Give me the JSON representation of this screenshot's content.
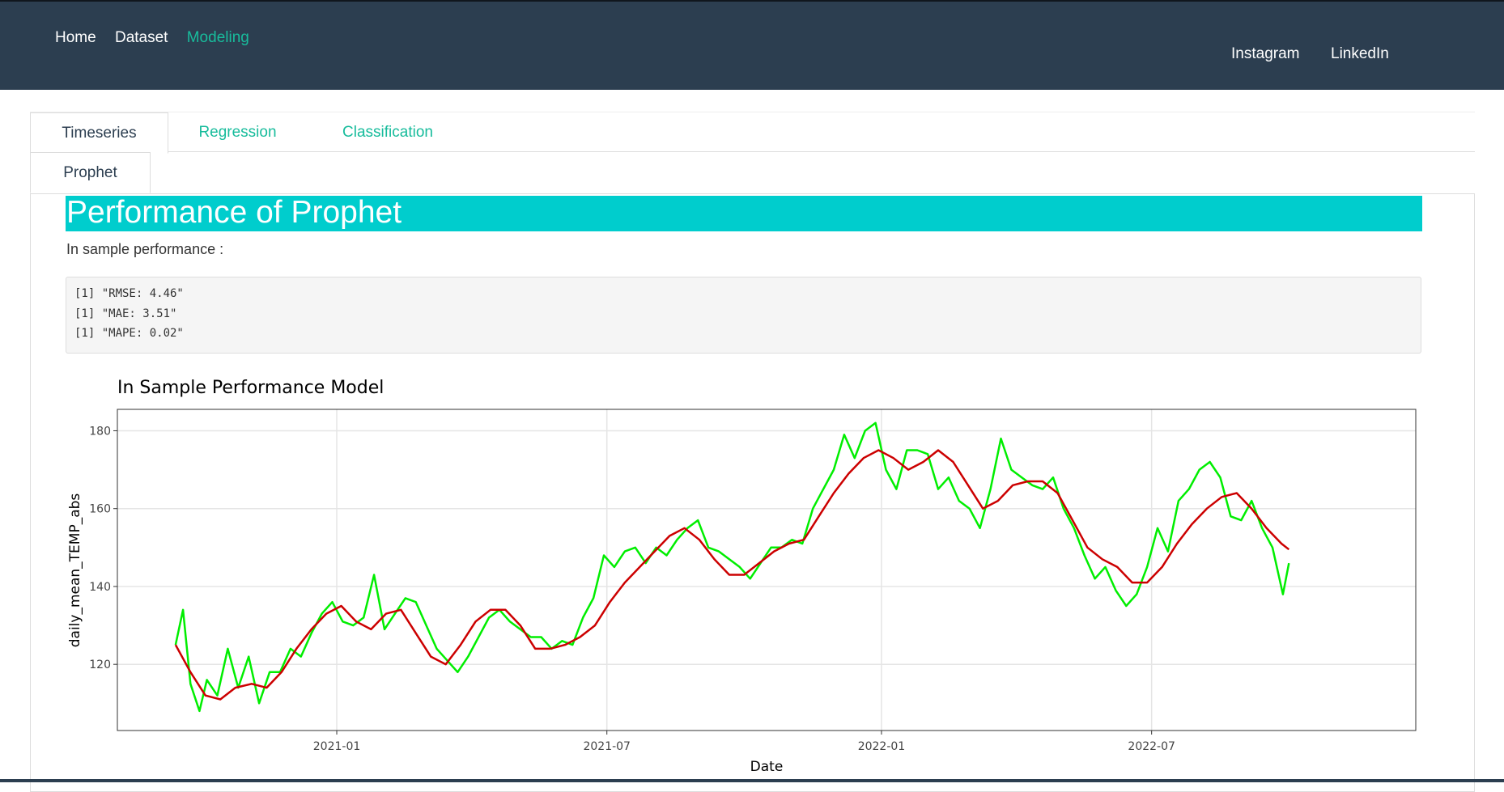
{
  "nav": {
    "left": [
      "Home",
      "Dataset",
      "Modeling"
    ],
    "active": "Modeling",
    "right": [
      "Instagram",
      "LinkedIn"
    ]
  },
  "tabs": {
    "main": [
      "Timeseries",
      "Regression",
      "Classification"
    ],
    "sub": [
      "Prophet"
    ]
  },
  "banner": "Performance of Prophet",
  "insample_label": "In sample performance :",
  "metrics": [
    "[1] \"RMSE: 4.46\"",
    "[1] \"MAE: 3.51\"",
    "[1] \"MAPE: 0.02\""
  ],
  "colors": {
    "navbar": "#2c3e50",
    "accent": "#18bc9c",
    "banner": "#00cdcd",
    "actual": "#00ee00",
    "fitted": "#cc0000"
  },
  "chart_data": {
    "type": "line",
    "title": "In Sample Performance Model",
    "xlabel": "Date",
    "ylabel": "daily_mean_TEMP_abs",
    "xlim": [
      "2020-08-07",
      "2022-12-25"
    ],
    "ylim": [
      103,
      185.5
    ],
    "x_ticks": [
      "2021-01",
      "2021-07",
      "2022-01",
      "2022-07"
    ],
    "y_ticks": [
      120,
      140,
      160,
      180
    ],
    "grid": true,
    "series": [
      {
        "color": "#00ee00",
        "x": [
          "2020-09-15",
          "2020-09-20",
          "2020-09-25",
          "2020-10-01",
          "2020-10-06",
          "2020-10-13",
          "2020-10-20",
          "2020-10-27",
          "2020-11-03",
          "2020-11-10",
          "2020-11-17",
          "2020-11-24",
          "2020-12-01",
          "2020-12-08",
          "2020-12-15",
          "2020-12-22",
          "2020-12-29",
          "2021-01-05",
          "2021-01-12",
          "2021-01-19",
          "2021-01-26",
          "2021-02-02",
          "2021-02-09",
          "2021-02-16",
          "2021-02-23",
          "2021-03-02",
          "2021-03-09",
          "2021-03-16",
          "2021-03-23",
          "2021-03-30",
          "2021-04-06",
          "2021-04-13",
          "2021-04-20",
          "2021-04-27",
          "2021-05-04",
          "2021-05-11",
          "2021-05-18",
          "2021-05-25",
          "2021-06-01",
          "2021-06-08",
          "2021-06-15",
          "2021-06-22",
          "2021-06-29",
          "2021-07-06",
          "2021-07-13",
          "2021-07-20",
          "2021-07-27",
          "2021-08-03",
          "2021-08-10",
          "2021-08-17",
          "2021-08-24",
          "2021-08-31",
          "2021-09-07",
          "2021-09-14",
          "2021-09-21",
          "2021-09-28",
          "2021-10-05",
          "2021-10-12",
          "2021-10-19",
          "2021-10-26",
          "2021-11-02",
          "2021-11-09",
          "2021-11-16",
          "2021-11-23",
          "2021-11-30",
          "2021-12-07",
          "2021-12-14",
          "2021-12-21",
          "2021-12-28",
          "2022-01-04",
          "2022-01-11",
          "2022-01-18",
          "2022-01-25",
          "2022-02-01",
          "2022-02-08",
          "2022-02-15",
          "2022-02-22",
          "2022-03-01",
          "2022-03-08",
          "2022-03-15",
          "2022-03-22",
          "2022-03-29",
          "2022-04-05",
          "2022-04-12",
          "2022-04-19",
          "2022-04-26",
          "2022-05-03",
          "2022-05-10",
          "2022-05-17",
          "2022-05-24",
          "2022-05-31",
          "2022-06-07",
          "2022-06-14",
          "2022-06-21",
          "2022-06-28",
          "2022-07-05",
          "2022-07-12",
          "2022-07-19",
          "2022-07-26",
          "2022-08-02",
          "2022-08-09",
          "2022-08-16",
          "2022-08-23",
          "2022-08-30",
          "2022-09-06",
          "2022-09-13",
          "2022-09-20",
          "2022-09-27",
          "2022-10-01"
        ],
        "y": [
          125,
          134,
          115,
          108,
          116,
          112,
          124,
          114,
          122,
          110,
          118,
          118,
          124,
          122,
          128,
          133,
          136,
          131,
          130,
          132,
          143,
          129,
          133,
          137,
          136,
          130,
          124,
          121,
          118,
          122,
          127,
          132,
          134,
          131,
          129,
          127,
          127,
          124,
          126,
          125,
          132,
          137,
          148,
          145,
          149,
          150,
          146,
          150,
          148,
          152,
          155,
          157,
          150,
          149,
          147,
          145,
          142,
          146,
          150,
          150,
          152,
          151,
          160,
          165,
          170,
          179,
          173,
          180,
          182,
          170,
          165,
          175,
          175,
          174,
          165,
          168,
          162,
          160,
          155,
          165,
          178,
          170,
          168,
          166,
          165,
          168,
          160,
          155,
          148,
          142,
          145,
          139,
          135,
          138,
          145,
          155,
          149,
          162,
          165,
          170,
          172,
          168,
          158,
          157,
          162,
          155,
          150,
          138,
          146
        ]
      },
      {
        "color": "#cc0000",
        "x": [
          "2020-09-15",
          "2020-09-25",
          "2020-10-05",
          "2020-10-15",
          "2020-10-25",
          "2020-11-05",
          "2020-11-15",
          "2020-11-25",
          "2020-12-05",
          "2020-12-15",
          "2020-12-25",
          "2021-01-04",
          "2021-01-14",
          "2021-01-24",
          "2021-02-03",
          "2021-02-13",
          "2021-02-23",
          "2021-03-05",
          "2021-03-15",
          "2021-03-25",
          "2021-04-04",
          "2021-04-14",
          "2021-04-24",
          "2021-05-04",
          "2021-05-14",
          "2021-05-24",
          "2021-06-03",
          "2021-06-13",
          "2021-06-23",
          "2021-07-03",
          "2021-07-13",
          "2021-07-23",
          "2021-08-02",
          "2021-08-12",
          "2021-08-22",
          "2021-09-01",
          "2021-09-11",
          "2021-09-21",
          "2021-10-01",
          "2021-10-11",
          "2021-10-21",
          "2021-10-31",
          "2021-11-10",
          "2021-11-20",
          "2021-11-30",
          "2021-12-10",
          "2021-12-20",
          "2021-12-30",
          "2022-01-09",
          "2022-01-19",
          "2022-01-29",
          "2022-02-08",
          "2022-02-18",
          "2022-02-28",
          "2022-03-10",
          "2022-03-20",
          "2022-03-30",
          "2022-04-09",
          "2022-04-19",
          "2022-04-29",
          "2022-05-09",
          "2022-05-19",
          "2022-05-29",
          "2022-06-08",
          "2022-06-18",
          "2022-06-28",
          "2022-07-08",
          "2022-07-18",
          "2022-07-28",
          "2022-08-07",
          "2022-08-17",
          "2022-08-27",
          "2022-09-06",
          "2022-09-16",
          "2022-09-26",
          "2022-10-01"
        ],
        "y": [
          125,
          118,
          112,
          111,
          114,
          115,
          114,
          118,
          124,
          129,
          133,
          135,
          131,
          129,
          133,
          134,
          128,
          122,
          120,
          125,
          131,
          134,
          134,
          130,
          124,
          124,
          125,
          127,
          130,
          136,
          141,
          145,
          149,
          153,
          155,
          152,
          147,
          143,
          143,
          146,
          149,
          151,
          152,
          158,
          164,
          169,
          173,
          175,
          173,
          170,
          172,
          175,
          172,
          166,
          160,
          162,
          166,
          167,
          167,
          164,
          157,
          150,
          147,
          145,
          141,
          141,
          145,
          151,
          156,
          160,
          163,
          164,
          160,
          155,
          151,
          149.5
        ]
      }
    ]
  }
}
